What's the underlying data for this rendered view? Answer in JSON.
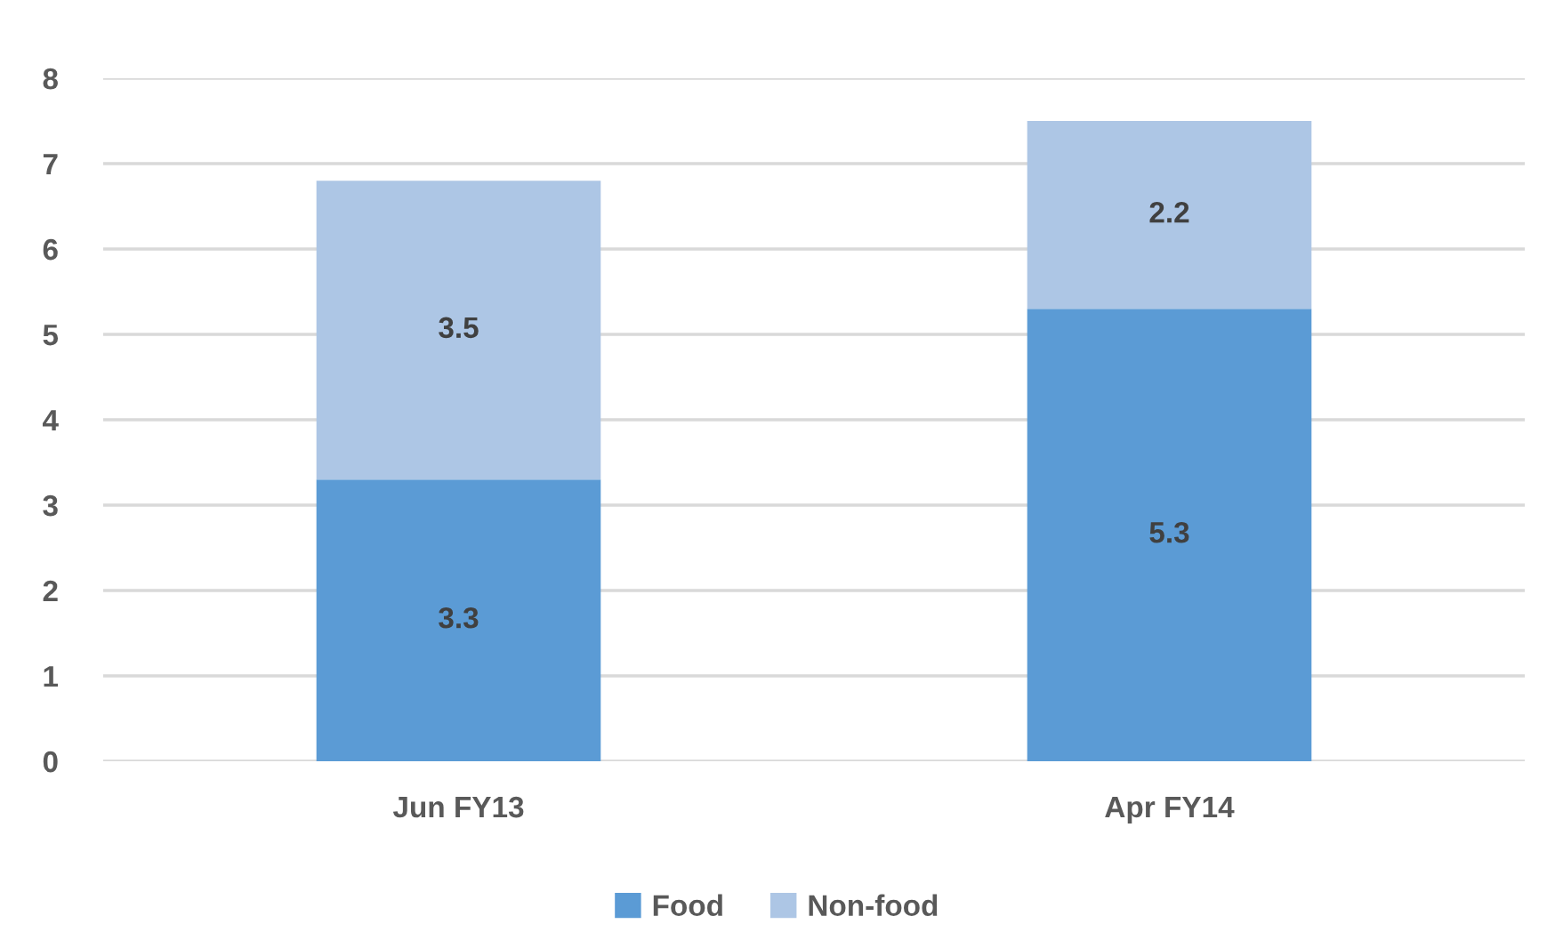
{
  "chart_data": {
    "type": "bar",
    "stacked": true,
    "categories": [
      "Jun FY13",
      "Apr FY14"
    ],
    "series": [
      {
        "name": "Food",
        "color": "#5b9bd5",
        "values": [
          3.3,
          5.3
        ]
      },
      {
        "name": "Non-food",
        "color": "#adc6e5",
        "values": [
          3.5,
          2.2
        ]
      }
    ],
    "ylim": [
      0,
      8
    ],
    "yticks": [
      0,
      1,
      2,
      3,
      4,
      5,
      6,
      7,
      8
    ],
    "grid": "y",
    "legend": "bottom",
    "data_labels": true
  }
}
